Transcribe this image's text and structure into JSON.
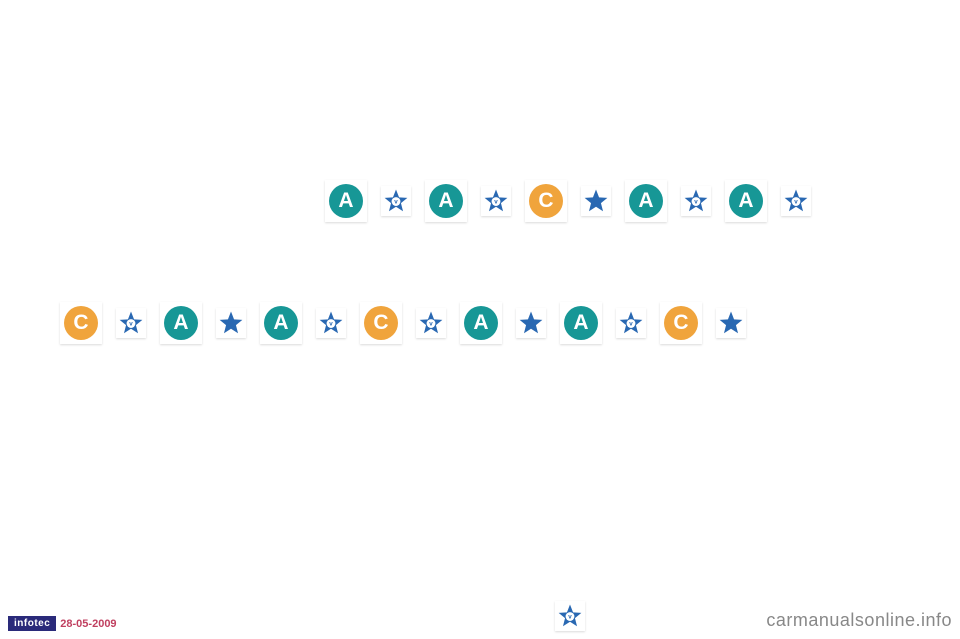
{
  "colors": {
    "teal": "#179796",
    "orange": "#f0a43c",
    "blue_star": "#2968b2",
    "white": "#ffffff",
    "infotec_bg": "#2a2a7a",
    "date_color": "#c04060",
    "watermark_color": "#9a9a9a"
  },
  "letters": {
    "A": "A",
    "C": "C"
  },
  "row1": [
    {
      "type": "letter",
      "letter": "A",
      "color": "teal"
    },
    {
      "type": "star",
      "v": true
    },
    {
      "type": "letter",
      "letter": "A",
      "color": "teal"
    },
    {
      "type": "star",
      "v": true
    },
    {
      "type": "letter",
      "letter": "C",
      "color": "orange"
    },
    {
      "type": "star",
      "v": false
    },
    {
      "type": "letter",
      "letter": "A",
      "color": "teal"
    },
    {
      "type": "star",
      "v": true
    },
    {
      "type": "letter",
      "letter": "A",
      "color": "teal"
    },
    {
      "type": "star",
      "v": true
    }
  ],
  "row2": [
    {
      "type": "letter",
      "letter": "C",
      "color": "orange"
    },
    {
      "type": "star",
      "v": true
    },
    {
      "type": "letter",
      "letter": "A",
      "color": "teal"
    },
    {
      "type": "star",
      "v": false
    },
    {
      "type": "letter",
      "letter": "A",
      "color": "teal"
    },
    {
      "type": "star",
      "v": true
    },
    {
      "type": "letter",
      "letter": "C",
      "color": "orange"
    },
    {
      "type": "star",
      "v": true
    },
    {
      "type": "letter",
      "letter": "A",
      "color": "teal"
    },
    {
      "type": "star",
      "v": false
    },
    {
      "type": "letter",
      "letter": "A",
      "color": "teal"
    },
    {
      "type": "star",
      "v": true
    },
    {
      "type": "letter",
      "letter": "C",
      "color": "orange"
    },
    {
      "type": "star",
      "v": false
    }
  ],
  "footer": {
    "infotec": "infotec",
    "date": "28-05-2009",
    "watermark": "carmanualsonline.info",
    "star": {
      "type": "star",
      "v": true
    }
  }
}
